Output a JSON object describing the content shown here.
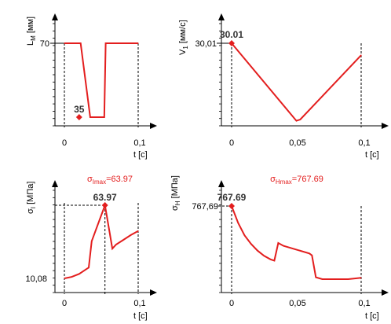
{
  "colors": {
    "curve": "#e31e1e",
    "axis": "#000000",
    "title": "#e31e1e",
    "peak_label": "#333333"
  },
  "chart_data": [
    {
      "type": "line",
      "ylabel": "L",
      "ylabel_sub": "M",
      "ylabel_unit": "[мм]",
      "xlabel": "t [c]",
      "xlim": [
        0,
        0.1
      ],
      "ylim": [
        35,
        70
      ],
      "x_ticks": [
        "0",
        "0,1"
      ],
      "y_tick_label": "70",
      "x": [
        0,
        0.02,
        0.022,
        0.035,
        0.037,
        0.054,
        0.056,
        0.06,
        0.1
      ],
      "y": [
        70,
        70,
        70,
        35,
        35,
        35,
        70,
        70,
        70
      ],
      "peak": {
        "x": 0.02,
        "y": 35,
        "label": "35"
      },
      "guide": "horizontal-to-y"
    },
    {
      "type": "line",
      "ylabel": "V",
      "ylabel_sub": "1",
      "ylabel_unit": "[мм/с]",
      "xlabel": "t [c]",
      "xlim": [
        0,
        0.1
      ],
      "ylim": [
        0,
        30.01
      ],
      "x_ticks": [
        "0",
        "0,05",
        "0,1"
      ],
      "y_tick_label": "30,01",
      "x": [
        0,
        0.05,
        0.053,
        0.1
      ],
      "y": [
        30.01,
        0.7,
        1.2,
        25.5
      ],
      "peak": {
        "x": 0,
        "y": 30.01,
        "label": "30.01"
      },
      "guide": "horizontal-to-y"
    },
    {
      "type": "line",
      "title": "σ",
      "title_sub": "Imax",
      "title_value": "=63.97",
      "ylabel": "σ",
      "ylabel_sub": "I",
      "ylabel_unit": "[МПа]",
      "xlabel": "t [c]",
      "xlim": [
        0,
        0.1
      ],
      "ylim": [
        10.08,
        63.97
      ],
      "x_ticks": [
        "0",
        "0,1"
      ],
      "y_tick_label": "10,08",
      "x": [
        0,
        0.01,
        0.02,
        0.03,
        0.033,
        0.037,
        0.055,
        0.061,
        0.065,
        0.07,
        0.08,
        0.09,
        0.1
      ],
      "y": [
        10.08,
        11.2,
        13.4,
        17.0,
        18.0,
        37.5,
        63.97,
        45.0,
        32.0,
        35.0,
        38.5,
        42.0,
        45.0
      ],
      "peak": {
        "x": 0.055,
        "y": 63.97,
        "label": "63.97"
      },
      "guide": "vertical-and-horizontal"
    },
    {
      "type": "line",
      "title": "σ",
      "title_sub": "Hmax",
      "title_value": "=767.69",
      "ylabel": "σ",
      "ylabel_sub": "H",
      "ylabel_unit": "[МПа]",
      "xlabel": "t [c]",
      "xlim": [
        0,
        0.1
      ],
      "ylim": [
        0,
        767.69
      ],
      "x_ticks": [
        "0",
        "0,05",
        "0,1"
      ],
      "y_tick_label": "767,69",
      "x": [
        0,
        0.005,
        0.01,
        0.015,
        0.02,
        0.025,
        0.03,
        0.033,
        0.036,
        0.04,
        0.05,
        0.06,
        0.062,
        0.065,
        0.07,
        0.08,
        0.09,
        0.1
      ],
      "y": [
        767.69,
        590,
        460,
        370,
        300,
        245,
        208,
        195,
        380,
        350,
        310,
        270,
        250,
        20,
        0,
        0,
        0,
        15
      ],
      "peak": {
        "x": 0,
        "y": 767.69,
        "label": "767.69"
      },
      "guide": "horizontal-to-y"
    }
  ]
}
